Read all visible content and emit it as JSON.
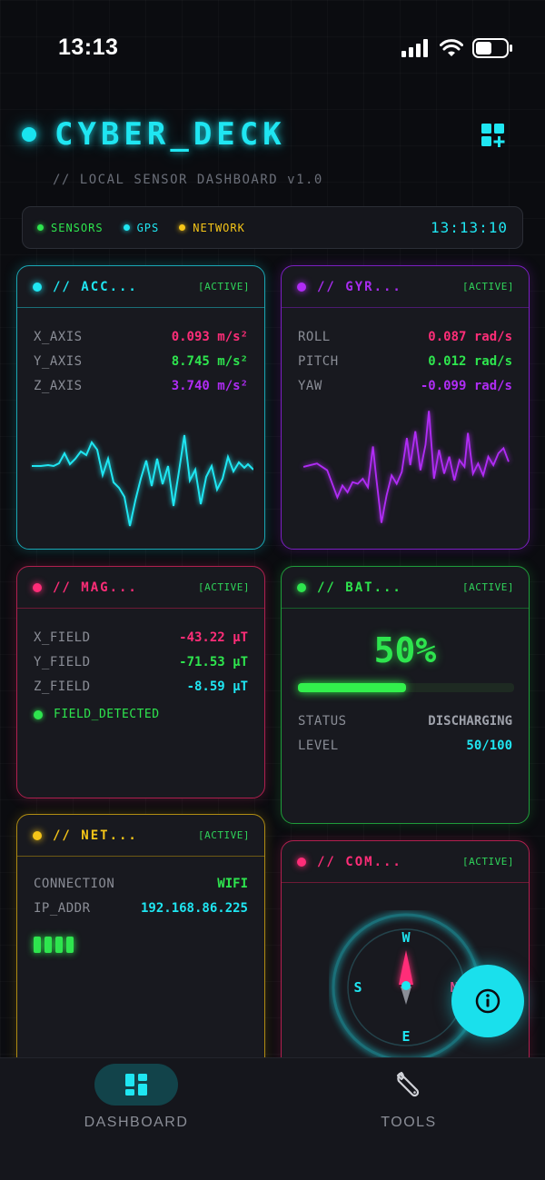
{
  "status_bar": {
    "time": "13:13"
  },
  "header": {
    "title": "CYBER_DECK",
    "subtitle": "// LOCAL SENSOR DASHBOARD v1.0"
  },
  "legend": {
    "items": [
      {
        "label": "SENSORS",
        "color": "#2ee54e"
      },
      {
        "label": "GPS",
        "color": "#1fe6f2"
      },
      {
        "label": "NETWORK",
        "color": "#f5c518"
      }
    ],
    "clock": "13:13:10"
  },
  "cards": {
    "accelerometer": {
      "title": "// ACC...",
      "badge": "[ACTIVE]",
      "color": "#1fd6e4",
      "rows": [
        {
          "label": "X_AXIS",
          "value": "0.093 m/s²",
          "color": "#ff2d78"
        },
        {
          "label": "Y_AXIS",
          "value": "8.745 m/s²",
          "color": "#2ee54e"
        },
        {
          "label": "Z_AXIS",
          "value": "3.740 m/s²",
          "color": "#b02cf5"
        }
      ]
    },
    "gyroscope": {
      "title": "// GYR...",
      "badge": "[ACTIVE]",
      "color": "#9a27e8",
      "rows": [
        {
          "label": "ROLL",
          "value": "0.087 rad/s",
          "color": "#ff2d78"
        },
        {
          "label": "PITCH",
          "value": "0.012 rad/s",
          "color": "#2ee54e"
        },
        {
          "label": "YAW",
          "value": "-0.099 rad/s",
          "color": "#b02cf5"
        }
      ]
    },
    "magnetometer": {
      "title": "// MAG...",
      "badge": "[ACTIVE]",
      "color": "#ff2d78",
      "rows": [
        {
          "label": "X_FIELD",
          "value": "-43.22 µT",
          "color": "#ff2d78"
        },
        {
          "label": "Y_FIELD",
          "value": "-71.53 µT",
          "color": "#2ee54e"
        },
        {
          "label": "Z_FIELD",
          "value": "-8.59 µT",
          "color": "#1fe6f2"
        }
      ],
      "field_status": "FIELD_DETECTED"
    },
    "battery": {
      "title": "// BAT...",
      "badge": "[ACTIVE]",
      "color": "#2ecf4c",
      "percent_label": "50%",
      "level_fraction": 0.5,
      "rows": [
        {
          "label": "STATUS",
          "value": "DISCHARGING",
          "color": "#9ea1aa"
        },
        {
          "label": "LEVEL",
          "value": "50/100",
          "color": "#1fe6f2"
        }
      ]
    },
    "network": {
      "title": "// NET...",
      "badge": "[ACTIVE]",
      "color": "#f5c518",
      "rows": [
        {
          "label": "CONNECTION",
          "value": "WIFI",
          "color": "#2ee54e"
        },
        {
          "label": "IP_ADDR",
          "value": "192.168.86.225",
          "color": "#1fe6f2"
        }
      ],
      "signal_bars": 4
    },
    "compass": {
      "title": "// COM...",
      "badge": "[ACTIVE]",
      "color": "#ff2d78",
      "labels": {
        "north_side": "W",
        "south_side": "E",
        "west_side": "S",
        "east_side": "N"
      }
    }
  },
  "tab_bar": {
    "tabs": [
      {
        "label": "DASHBOARD",
        "icon": "dashboard-icon",
        "active": true
      },
      {
        "label": "TOOLS",
        "icon": "wrench-icon",
        "active": false
      }
    ]
  },
  "fab": {
    "icon": "info-icon"
  }
}
